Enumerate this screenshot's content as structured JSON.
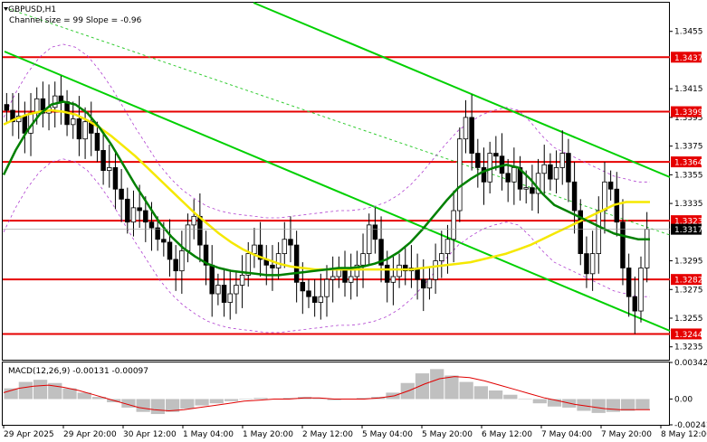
{
  "header": {
    "symbol": "GBPUSD,H1",
    "channel_info": "Channel size = 99 Slope = -0.96"
  },
  "macd": {
    "label": "MACD(12,26,9) -0.00131 -0.00097",
    "ticks": [
      "0.00342",
      "0.00",
      "-0.00241"
    ]
  },
  "chart_data": {
    "type": "candlestick",
    "symbol": "GBPUSD",
    "timeframe": "H1",
    "ylim": [
      1.3226,
      1.3475
    ],
    "y_ticks": [
      "1.3455",
      "1.3415",
      "1.3395",
      "1.3375",
      "1.3355",
      "1.3335",
      "1.3295",
      "1.3275",
      "1.3255",
      "1.3235"
    ],
    "x_ticks": [
      "29 Apr 2025",
      "29 Apr 20:00",
      "30 Apr 12:00",
      "1 May 04:00",
      "1 May 20:00",
      "2 May 12:00",
      "5 May 04:00",
      "5 May 20:00",
      "6 May 12:00",
      "7 May 04:00",
      "7 May 20:00",
      "8 May 12:00"
    ],
    "price_levels": [
      {
        "value": 1.3437,
        "label": "1.3437",
        "color": "#e60000"
      },
      {
        "value": 1.3399,
        "label": "1.3399",
        "color": "#e60000"
      },
      {
        "value": 1.3364,
        "label": "1.3364",
        "color": "#e60000"
      },
      {
        "value": 1.3323,
        "label": "1.3323",
        "color": "#e60000"
      },
      {
        "value": 1.3282,
        "label": "1.3282",
        "color": "#e60000"
      },
      {
        "value": 1.3244,
        "label": "1.3244",
        "color": "#e60000"
      }
    ],
    "current_price": {
      "value": 1.3317,
      "label": "1.3317"
    },
    "close": [
      1.34,
      1.3392,
      1.3396,
      1.3384,
      1.3398,
      1.3408,
      1.3398,
      1.3402,
      1.341,
      1.3406,
      1.339,
      1.3394,
      1.338,
      1.3392,
      1.3384,
      1.3372,
      1.3358,
      1.336,
      1.3345,
      1.3338,
      1.3322,
      1.3332,
      1.333,
      1.3322,
      1.3318,
      1.331,
      1.3308,
      1.3296,
      1.3288,
      1.3302,
      1.332,
      1.3326,
      1.3306,
      1.3292,
      1.3272,
      1.3278,
      1.3266,
      1.3272,
      1.3278,
      1.3285,
      1.33,
      1.3306,
      1.3296,
      1.3292,
      1.329,
      1.33,
      1.331,
      1.3306,
      1.328,
      1.3274,
      1.327,
      1.3266,
      1.327,
      1.3282,
      1.3284,
      1.329,
      1.328,
      1.3284,
      1.3292,
      1.33,
      1.332,
      1.331,
      1.3292,
      1.328,
      1.3284,
      1.3292,
      1.3288,
      1.329,
      1.3282,
      1.3276,
      1.3282,
      1.3295,
      1.33,
      1.331,
      1.333,
      1.338,
      1.3395,
      1.337,
      1.336,
      1.335,
      1.337,
      1.3368,
      1.3356,
      1.335,
      1.336,
      1.3345,
      1.3346,
      1.3342,
      1.3356,
      1.3362,
      1.3352,
      1.336,
      1.337,
      1.335,
      1.333,
      1.33,
      1.3286,
      1.33,
      1.333,
      1.335,
      1.3345,
      1.3322,
      1.329,
      1.327,
      1.326,
      1.329,
      1.3317
    ],
    "sma_slow": [
      1.339,
      1.3394,
      1.3397,
      1.3399,
      1.34,
      1.3399,
      1.3397,
      1.3393,
      1.3388,
      1.3382,
      1.3375,
      1.3368,
      1.336,
      1.3352,
      1.3344,
      1.3336,
      1.3328,
      1.3321,
      1.3314,
      1.3308,
      1.3303,
      1.3299,
      1.3296,
      1.3293,
      1.3291,
      1.329,
      1.3289,
      1.3289,
      1.3289,
      1.3289,
      1.3289,
      1.3289,
      1.3289,
      1.3289,
      1.3289,
      1.329,
      1.3291,
      1.3292,
      1.3293,
      1.3294,
      1.3296,
      1.3298,
      1.33,
      1.3303,
      1.3306,
      1.331,
      1.3314,
      1.3318,
      1.3322,
      1.3326,
      1.333,
      1.3334,
      1.3336,
      1.3336,
      1.3336
    ],
    "sma_fast": [
      1.3355,
      1.3372,
      1.3386,
      1.3397,
      1.3404,
      1.3406,
      1.3404,
      1.3398,
      1.3388,
      1.3376,
      1.3362,
      1.3348,
      1.3335,
      1.3322,
      1.3312,
      1.3304,
      1.3298,
      1.3293,
      1.329,
      1.3288,
      1.3287,
      1.3286,
      1.3285,
      1.3285,
      1.3286,
      1.3287,
      1.3288,
      1.3289,
      1.329,
      1.329,
      1.3291,
      1.3293,
      1.3296,
      1.3301,
      1.3308,
      1.3317,
      1.3327,
      1.3337,
      1.3346,
      1.3352,
      1.3357,
      1.336,
      1.3362,
      1.336,
      1.3352,
      1.3342,
      1.3334,
      1.333,
      1.3326,
      1.3322,
      1.3318,
      1.3314,
      1.3312,
      1.331,
      1.331
    ],
    "macd_hist": [
      0.001,
      0.0016,
      0.0018,
      0.0015,
      0.001,
      0.0006,
      0.0002,
      -0.0003,
      -0.0008,
      -0.0012,
      -0.0014,
      -0.0012,
      -0.0009,
      -0.0006,
      -0.0004,
      -0.0002,
      0.0,
      0.0001,
      0.0,
      0.0001,
      0.0002,
      0.0001,
      -0.0001,
      0.0,
      0.0001,
      0.0002,
      0.0006,
      0.0015,
      0.0024,
      0.0028,
      0.0022,
      0.0016,
      0.0012,
      0.0008,
      0.0004,
      0.0,
      -0.0004,
      -0.0007,
      -0.0008,
      -0.0011,
      -0.0013,
      -0.0012,
      -0.0011,
      -0.001
    ],
    "macd_signal": [
      0.0006,
      0.001,
      0.0012,
      0.0013,
      0.0011,
      0.0008,
      0.0004,
      0.0,
      -0.0004,
      -0.0008,
      -0.001,
      -0.0011,
      -0.001,
      -0.0008,
      -0.0006,
      -0.0004,
      -0.0002,
      -0.0001,
      0.0,
      0.0,
      0.0001,
      0.0001,
      0.0,
      0.0,
      0.0,
      0.0001,
      0.0003,
      0.0008,
      0.0014,
      0.0019,
      0.0021,
      0.002,
      0.0017,
      0.0013,
      0.0009,
      0.0005,
      0.0001,
      -0.0002,
      -0.0005,
      -0.0007,
      -0.0009,
      -0.001,
      -0.001,
      -0.001
    ]
  }
}
